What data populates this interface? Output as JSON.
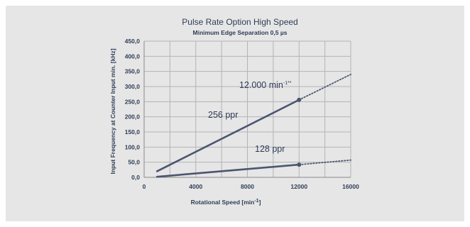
{
  "chart_data": {
    "type": "line",
    "title": "Pulse Rate Option High Speed",
    "subtitle": "Minimum Edge Separation 0,5 µs",
    "xlabel_main": "Rotational Speed [min",
    "xlabel_sup": "-1",
    "xlabel_end": "]",
    "ylabel": "Input Frequency at Counter Input min. [kHz]",
    "xlim": [
      0,
      16000
    ],
    "ylim": [
      0,
      450
    ],
    "x_ticks": [
      "0",
      "4000",
      "8000",
      "12000",
      "16000"
    ],
    "x_tick_values": [
      0,
      4000,
      8000,
      12000,
      16000
    ],
    "y_ticks": [
      "0,0",
      "50,0",
      "100,0",
      "150,0",
      "200,0",
      "250,0",
      "300,0",
      "350,0",
      "400,0",
      "450,0"
    ],
    "y_tick_values": [
      0,
      50,
      100,
      150,
      200,
      250,
      300,
      350,
      400,
      450
    ],
    "grid": true,
    "series": [
      {
        "name": "256 ppr",
        "color": "#4a5570",
        "solid": {
          "x": [
            1000,
            12000
          ],
          "y": [
            20,
            256
          ]
        },
        "dotted": {
          "x": [
            12000,
            16000
          ],
          "y": [
            256,
            340
          ]
        },
        "marker": {
          "x": 12000,
          "y": 256
        }
      },
      {
        "name": "128 ppr",
        "color": "#4a5570",
        "solid": {
          "x": [
            1000,
            12000
          ],
          "y": [
            2,
            42
          ]
        },
        "dotted": {
          "x": [
            12000,
            16000
          ],
          "y": [
            42,
            57
          ]
        },
        "marker": {
          "x": 12000,
          "y": 42
        }
      }
    ],
    "annotations": {
      "speed_limit_main": "12.000 min",
      "speed_limit_sup": "-1**"
    }
  }
}
